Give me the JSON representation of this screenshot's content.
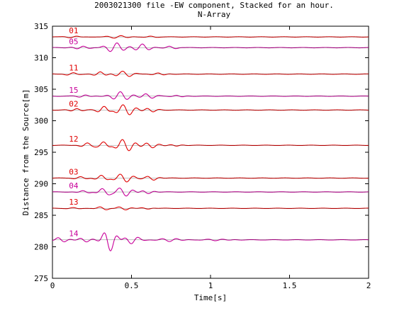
{
  "chart_data": {
    "type": "line",
    "title": "2003021300 file -EW component, Stacked for an hour.",
    "subtitle": "N-Array",
    "xlabel": "Time[s]",
    "ylabel": "Distance from the Source[m]",
    "xlim": [
      0,
      2
    ],
    "ylim": [
      275,
      315
    ],
    "xticks": [
      0,
      0.5,
      1,
      1.5,
      2
    ],
    "xtick_labels": [
      "0",
      "0.5",
      "1",
      "1.5",
      "2"
    ],
    "yticks": [
      275,
      280,
      285,
      290,
      295,
      300,
      305,
      310,
      315
    ],
    "ytick_labels": [
      "275",
      "280",
      "285",
      "290",
      "295",
      "300",
      "305",
      "310",
      "315"
    ],
    "grid": false,
    "colors": {
      "red": "#e00000",
      "magenta": "#c8009a",
      "axis": "#000000"
    },
    "series": [
      {
        "name": "01",
        "baseline": 313.3,
        "color": "#e00000",
        "label_x": 0.1,
        "amp": 0.18,
        "bursts": [
          {
            "t": 0.13,
            "a": 0.12,
            "w": 0.06
          },
          {
            "t": 0.42,
            "a": 0.2,
            "w": 0.08
          },
          {
            "t": 0.62,
            "a": 0.1,
            "w": 0.05
          }
        ]
      },
      {
        "name": "05",
        "baseline": 311.6,
        "color": "#c8009a",
        "label_x": 0.1,
        "amp": 0.8,
        "bursts": [
          {
            "t": 0.18,
            "a": 0.25,
            "w": 0.06
          },
          {
            "t": 0.4,
            "a": 0.75,
            "w": 0.07
          },
          {
            "t": 0.57,
            "a": 0.55,
            "w": 0.06
          },
          {
            "t": 0.75,
            "a": 0.2,
            "w": 0.05
          }
        ]
      },
      {
        "name": "11",
        "baseline": 307.4,
        "color": "#e00000",
        "label_x": 0.1,
        "amp": 0.45,
        "bursts": [
          {
            "t": 0.12,
            "a": 0.2,
            "w": 0.05
          },
          {
            "t": 0.3,
            "a": 0.35,
            "w": 0.05
          },
          {
            "t": 0.45,
            "a": 0.45,
            "w": 0.07
          },
          {
            "t": 0.68,
            "a": 0.2,
            "w": 0.05
          }
        ]
      },
      {
        "name": "15",
        "baseline": 303.9,
        "color": "#c8009a",
        "label_x": 0.1,
        "amp": 0.7,
        "bursts": [
          {
            "t": 0.2,
            "a": 0.2,
            "w": 0.05
          },
          {
            "t": 0.43,
            "a": 0.7,
            "w": 0.07
          },
          {
            "t": 0.6,
            "a": 0.4,
            "w": 0.06
          },
          {
            "t": 0.8,
            "a": 0.15,
            "w": 0.05
          }
        ]
      },
      {
        "name": "02",
        "baseline": 301.7,
        "color": "#e00000",
        "label_x": 0.1,
        "amp": 0.9,
        "bursts": [
          {
            "t": 0.15,
            "a": 0.25,
            "w": 0.05
          },
          {
            "t": 0.33,
            "a": 0.6,
            "w": 0.05
          },
          {
            "t": 0.46,
            "a": 0.9,
            "w": 0.07
          },
          {
            "t": 0.62,
            "a": 0.35,
            "w": 0.05
          }
        ]
      },
      {
        "name": "12",
        "baseline": 296.1,
        "color": "#e00000",
        "label_x": 0.1,
        "amp": 1.0,
        "bursts": [
          {
            "t": 0.22,
            "a": 0.35,
            "w": 0.05
          },
          {
            "t": 0.33,
            "a": 0.55,
            "w": 0.05
          },
          {
            "t": 0.46,
            "a": 1.0,
            "w": 0.07
          },
          {
            "t": 0.62,
            "a": 0.45,
            "w": 0.06
          },
          {
            "t": 0.78,
            "a": 0.15,
            "w": 0.05
          }
        ]
      },
      {
        "name": "03",
        "baseline": 290.9,
        "color": "#e00000",
        "label_x": 0.1,
        "amp": 0.7,
        "bursts": [
          {
            "t": 0.18,
            "a": 0.2,
            "w": 0.05
          },
          {
            "t": 0.32,
            "a": 0.45,
            "w": 0.05
          },
          {
            "t": 0.45,
            "a": 0.7,
            "w": 0.07
          },
          {
            "t": 0.63,
            "a": 0.35,
            "w": 0.05
          }
        ]
      },
      {
        "name": "04",
        "baseline": 288.7,
        "color": "#c8009a",
        "label_x": 0.1,
        "amp": 0.7,
        "bursts": [
          {
            "t": 0.2,
            "a": 0.2,
            "w": 0.05
          },
          {
            "t": 0.33,
            "a": 0.55,
            "w": 0.05
          },
          {
            "t": 0.45,
            "a": 0.7,
            "w": 0.07
          },
          {
            "t": 0.6,
            "a": 0.3,
            "w": 0.05
          }
        ]
      },
      {
        "name": "13",
        "baseline": 286.1,
        "color": "#e00000",
        "label_x": 0.1,
        "amp": 0.25,
        "bursts": [
          {
            "t": 0.14,
            "a": 0.1,
            "w": 0.05
          },
          {
            "t": 0.32,
            "a": 0.25,
            "w": 0.05
          },
          {
            "t": 0.45,
            "a": 0.25,
            "w": 0.06
          },
          {
            "t": 0.6,
            "a": 0.12,
            "w": 0.05
          }
        ]
      },
      {
        "name": "14",
        "baseline": 281.1,
        "color": "#c8009a",
        "label_x": 0.1,
        "amp": 1.8,
        "bursts": [
          {
            "t": 0.05,
            "a": 0.4,
            "w": 0.05
          },
          {
            "t": 0.2,
            "a": 0.35,
            "w": 0.05
          },
          {
            "t": 0.36,
            "a": 1.8,
            "w": 0.05
          },
          {
            "t": 0.5,
            "a": 0.6,
            "w": 0.06
          },
          {
            "t": 0.75,
            "a": 0.25,
            "w": 0.08
          },
          {
            "t": 1.05,
            "a": 0.12,
            "w": 0.1
          }
        ]
      }
    ]
  }
}
